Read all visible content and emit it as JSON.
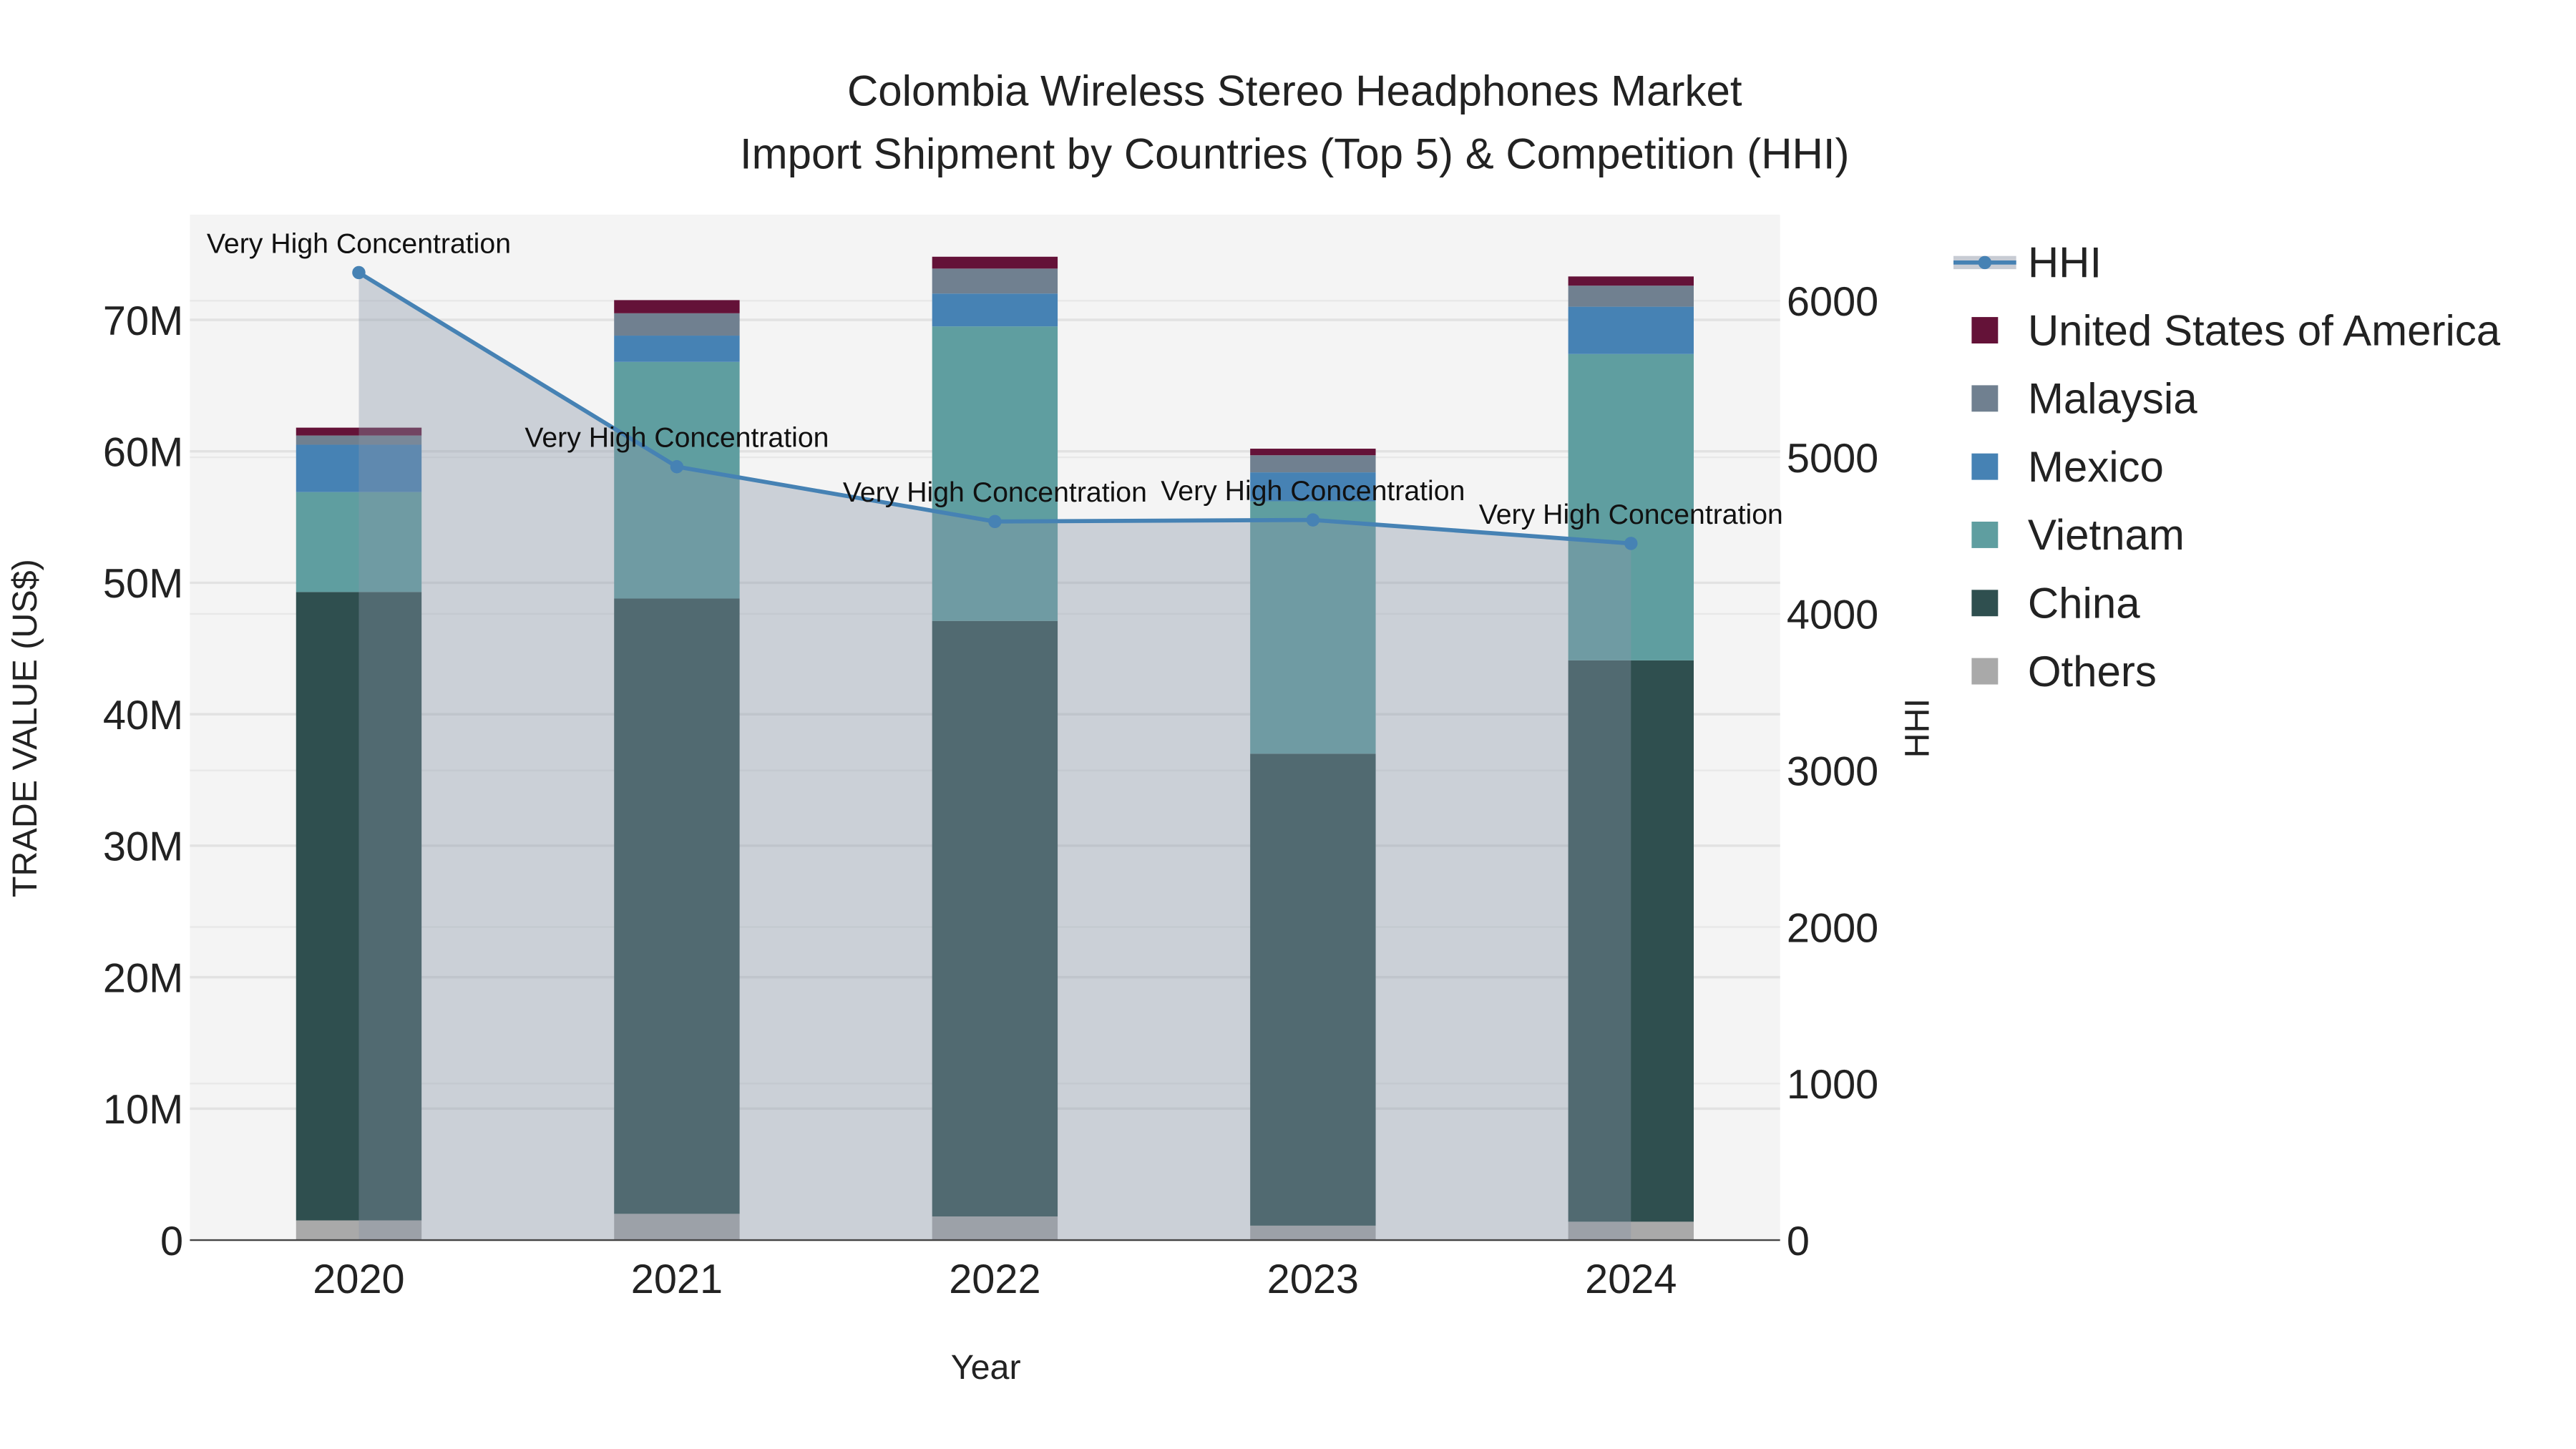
{
  "chart_data": {
    "type": "bar",
    "title_line1": "Colombia Wireless Stereo Headphones Market",
    "title_line2": "Import Shipment by Countries (Top 5) & Competition (HHI)",
    "xlabel": "Year",
    "ylabel": "TRADE VALUE (US$)",
    "y2label": "HHI",
    "categories": [
      "2020",
      "2021",
      "2022",
      "2023",
      "2024"
    ],
    "ylim": [
      0,
      78000000
    ],
    "y2lim": [
      0,
      6550
    ],
    "yticks": [
      0,
      10000000,
      20000000,
      30000000,
      40000000,
      50000000,
      60000000,
      70000000
    ],
    "ytick_labels": [
      "0",
      "10M",
      "20M",
      "30M",
      "40M",
      "50M",
      "60M",
      "70M"
    ],
    "y2ticks": [
      0,
      1000,
      2000,
      3000,
      4000,
      5000,
      6000
    ],
    "y2tick_labels": [
      "0",
      "1000",
      "2000",
      "3000",
      "4000",
      "5000",
      "6000"
    ],
    "series": [
      {
        "name": "Others",
        "color": "#a9a9a9",
        "values": [
          1500000,
          2000000,
          1800000,
          1100000,
          1400000
        ]
      },
      {
        "name": "China",
        "color": "#2f4f4f",
        "values": [
          47800000,
          46800000,
          45300000,
          35900000,
          42700000
        ]
      },
      {
        "name": "Vietnam",
        "color": "#5f9ea0",
        "values": [
          7600000,
          18000000,
          22400000,
          19200000,
          23300000
        ]
      },
      {
        "name": "Mexico",
        "color": "#4682b4",
        "values": [
          3600000,
          2000000,
          2500000,
          2200000,
          3600000
        ]
      },
      {
        "name": "Malaysia",
        "color": "#708090",
        "values": [
          700000,
          1700000,
          1900000,
          1300000,
          1600000
        ]
      },
      {
        "name": "United States of America",
        "color": "#641238",
        "values": [
          600000,
          1000000,
          900000,
          500000,
          700000
        ]
      }
    ],
    "hhi": {
      "name": "HHI",
      "color": "#4682b4",
      "values": [
        6180,
        4940,
        4590,
        4600,
        4450
      ],
      "annotations": [
        "Very High Concentration",
        "Very High Concentration",
        "Very High Concentration",
        "Very High Concentration",
        "Very High Concentration"
      ]
    },
    "legend": [
      "HHI",
      "United States of America",
      "Malaysia",
      "Mexico",
      "Vietnam",
      "China",
      "Others"
    ],
    "legend_position": "right",
    "grid": true
  }
}
